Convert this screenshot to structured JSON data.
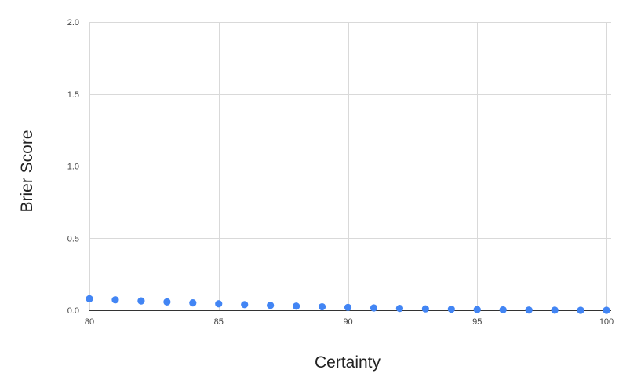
{
  "chart_data": {
    "type": "scatter",
    "title": "",
    "xlabel": "Certainty",
    "ylabel": "Brier Score",
    "xlim": [
      80,
      100
    ],
    "ylim": [
      0,
      2
    ],
    "x_ticks": [
      80,
      85,
      90,
      95,
      100
    ],
    "x_tick_labels": [
      "80",
      "85",
      "90",
      "95",
      "100"
    ],
    "y_ticks": [
      0,
      0.5,
      1,
      1.5,
      2
    ],
    "y_tick_labels": [
      "0.0",
      "0.5",
      "1.0",
      "1.5",
      "2.0"
    ],
    "grid": true,
    "legend": "none",
    "series": [
      {
        "color": "#4285f4",
        "x": [
          80,
          81,
          82,
          83,
          84,
          85,
          86,
          87,
          88,
          89,
          90,
          91,
          92,
          93,
          94,
          95,
          96,
          97,
          98,
          99,
          100
        ],
        "y": [
          0.08,
          0.0722,
          0.0648,
          0.0578,
          0.0512,
          0.045,
          0.0392,
          0.0338,
          0.0288,
          0.0242,
          0.02,
          0.0162,
          0.0128,
          0.0098,
          0.0072,
          0.005,
          0.0032,
          0.0018,
          0.0008,
          0.0002,
          0.0
        ]
      }
    ]
  }
}
